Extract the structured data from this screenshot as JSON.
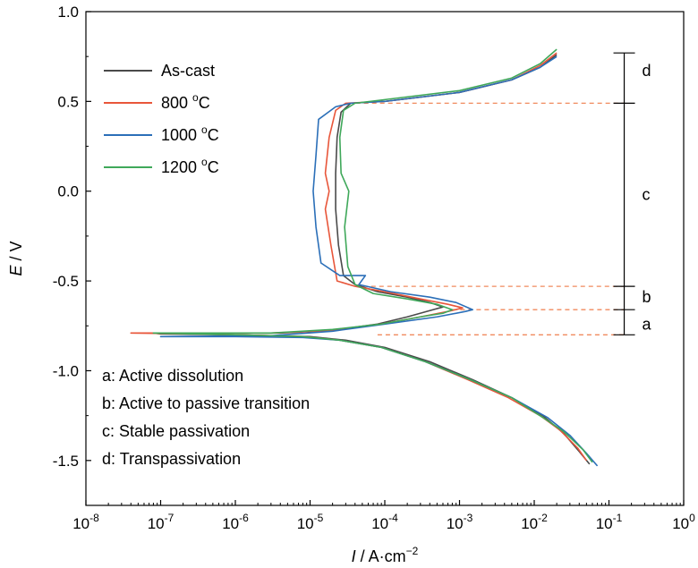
{
  "chart_data": {
    "type": "line",
    "x_scale": "log",
    "xlim": [
      1e-08,
      1
    ],
    "ylim": [
      -1.75,
      1.0
    ],
    "xlabel": {
      "italic": "I",
      "rest": " / A·cm",
      "sup": "−2"
    },
    "ylabel": {
      "italic": "E",
      "rest": " / V"
    },
    "x_ticks": [
      {
        "value": 1e-08,
        "base": "10",
        "exp": "-8"
      },
      {
        "value": 1e-07,
        "base": "10",
        "exp": "-7"
      },
      {
        "value": 1e-06,
        "base": "10",
        "exp": "-6"
      },
      {
        "value": 1e-05,
        "base": "10",
        "exp": "-5"
      },
      {
        "value": 0.0001,
        "base": "10",
        "exp": "-4"
      },
      {
        "value": 0.001,
        "base": "10",
        "exp": "-3"
      },
      {
        "value": 0.01,
        "base": "10",
        "exp": "-2"
      },
      {
        "value": 0.1,
        "base": "10",
        "exp": "-1"
      },
      {
        "value": 1,
        "base": "10",
        "exp": "0"
      }
    ],
    "y_ticks": [
      {
        "value": 1.0,
        "label": "1.0"
      },
      {
        "value": 0.5,
        "label": "0.5"
      },
      {
        "value": 0.0,
        "label": "0.0"
      },
      {
        "value": -0.5,
        "label": "-0.5"
      },
      {
        "value": -1.0,
        "label": "-1.0"
      },
      {
        "value": -1.5,
        "label": "-1.5"
      }
    ],
    "series": [
      {
        "name": "As-cast",
        "color": "#4a4a4a",
        "points": [
          [
            0.055,
            -1.52
          ],
          [
            0.04,
            -1.45
          ],
          [
            0.025,
            -1.35
          ],
          [
            0.013,
            -1.25
          ],
          [
            0.005,
            -1.15
          ],
          [
            0.0015,
            -1.05
          ],
          [
            0.0004,
            -0.95
          ],
          [
            0.0001,
            -0.87
          ],
          [
            3e-05,
            -0.83
          ],
          [
            1e-05,
            -0.81
          ],
          [
            1e-06,
            -0.8
          ],
          [
            1e-07,
            -0.795
          ],
          [
            8e-08,
            -0.79
          ],
          [
            4e-06,
            -0.79
          ],
          [
            2e-05,
            -0.775
          ],
          [
            8e-05,
            -0.74
          ],
          [
            0.0002,
            -0.7
          ],
          [
            0.0004,
            -0.665
          ],
          [
            0.0006,
            -0.645
          ],
          [
            0.0004,
            -0.62
          ],
          [
            0.0002,
            -0.59
          ],
          [
            8e-05,
            -0.56
          ],
          [
            4e-05,
            -0.52
          ],
          [
            2.8e-05,
            -0.47
          ],
          [
            2.4e-05,
            -0.3
          ],
          [
            2.2e-05,
            -0.1
          ],
          [
            2.2e-05,
            0.1
          ],
          [
            2.3e-05,
            0.3
          ],
          [
            2.6e-05,
            0.44
          ],
          [
            3.5e-05,
            0.49
          ],
          [
            0.0001,
            0.5
          ],
          [
            0.001,
            0.55
          ],
          [
            0.005,
            0.62
          ],
          [
            0.012,
            0.69
          ],
          [
            0.02,
            0.76
          ]
        ]
      },
      {
        "name": "800 °C",
        "color": "#e8563a",
        "points": [
          [
            0.05,
            -1.5
          ],
          [
            0.038,
            -1.43
          ],
          [
            0.022,
            -1.33
          ],
          [
            0.012,
            -1.25
          ],
          [
            0.0045,
            -1.15
          ],
          [
            0.0013,
            -1.05
          ],
          [
            0.00035,
            -0.95
          ],
          [
            9e-05,
            -0.87
          ],
          [
            2.5e-05,
            -0.83
          ],
          [
            8e-06,
            -0.81
          ],
          [
            1e-06,
            -0.8
          ],
          [
            3e-07,
            -0.795
          ],
          [
            4e-08,
            -0.79
          ],
          [
            3e-06,
            -0.79
          ],
          [
            2e-05,
            -0.775
          ],
          [
            9e-05,
            -0.74
          ],
          [
            0.0003,
            -0.7
          ],
          [
            0.0007,
            -0.67
          ],
          [
            0.0011,
            -0.65
          ],
          [
            0.0007,
            -0.63
          ],
          [
            0.0003,
            -0.6
          ],
          [
            0.0001,
            -0.56
          ],
          [
            4e-05,
            -0.53
          ],
          [
            2.3e-05,
            -0.5
          ],
          [
            1.9e-05,
            -0.3
          ],
          [
            1.6e-05,
            -0.1
          ],
          [
            1.8e-05,
            0.0
          ],
          [
            1.6e-05,
            0.1
          ],
          [
            1.8e-05,
            0.3
          ],
          [
            2.2e-05,
            0.45
          ],
          [
            3e-05,
            0.49
          ],
          [
            0.0001,
            0.5
          ],
          [
            0.001,
            0.55
          ],
          [
            0.005,
            0.62
          ],
          [
            0.012,
            0.7
          ],
          [
            0.02,
            0.77
          ]
        ]
      },
      {
        "name": "1000 °C",
        "color": "#2b6fb8",
        "points": [
          [
            0.07,
            -1.53
          ],
          [
            0.05,
            -1.46
          ],
          [
            0.03,
            -1.36
          ],
          [
            0.015,
            -1.26
          ],
          [
            0.005,
            -1.15
          ],
          [
            0.0014,
            -1.05
          ],
          [
            0.00035,
            -0.95
          ],
          [
            9e-05,
            -0.87
          ],
          [
            2.5e-05,
            -0.83
          ],
          [
            8e-06,
            -0.815
          ],
          [
            1e-06,
            -0.81
          ],
          [
            1e-07,
            -0.81
          ],
          [
            3e-06,
            -0.805
          ],
          [
            2e-05,
            -0.78
          ],
          [
            0.0001,
            -0.74
          ],
          [
            0.0005,
            -0.7
          ],
          [
            0.0012,
            -0.67
          ],
          [
            0.0015,
            -0.66
          ],
          [
            0.0009,
            -0.62
          ],
          [
            0.0004,
            -0.59
          ],
          [
            0.00012,
            -0.56
          ],
          [
            4.5e-05,
            -0.52
          ],
          [
            5.5e-05,
            -0.47
          ],
          [
            2.5e-05,
            -0.47
          ],
          [
            1.4e-05,
            -0.4
          ],
          [
            1.2e-05,
            -0.2
          ],
          [
            1.1e-05,
            0.0
          ],
          [
            1.2e-05,
            0.2
          ],
          [
            1.3e-05,
            0.4
          ],
          [
            2.2e-05,
            0.47
          ],
          [
            3.5e-05,
            0.49
          ],
          [
            0.0001,
            0.5
          ],
          [
            0.001,
            0.55
          ],
          [
            0.005,
            0.62
          ],
          [
            0.012,
            0.69
          ],
          [
            0.02,
            0.75
          ]
        ]
      },
      {
        "name": "1200 °C",
        "color": "#3fa85a",
        "points": [
          [
            0.06,
            -1.51
          ],
          [
            0.045,
            -1.44
          ],
          [
            0.025,
            -1.34
          ],
          [
            0.013,
            -1.26
          ],
          [
            0.005,
            -1.15
          ],
          [
            0.0014,
            -1.05
          ],
          [
            0.00035,
            -0.95
          ],
          [
            9e-05,
            -0.87
          ],
          [
            2.5e-05,
            -0.83
          ],
          [
            8e-06,
            -0.81
          ],
          [
            1e-06,
            -0.8
          ],
          [
            8e-08,
            -0.79
          ],
          [
            3e-06,
            -0.79
          ],
          [
            2e-05,
            -0.77
          ],
          [
            9e-05,
            -0.74
          ],
          [
            0.0003,
            -0.7
          ],
          [
            0.0006,
            -0.68
          ],
          [
            0.0008,
            -0.66
          ],
          [
            0.0005,
            -0.63
          ],
          [
            0.0002,
            -0.6
          ],
          [
            7e-05,
            -0.57
          ],
          [
            4e-05,
            -0.52
          ],
          [
            3.2e-05,
            -0.42
          ],
          [
            2.9e-05,
            -0.2
          ],
          [
            3.3e-05,
            0.0
          ],
          [
            2.6e-05,
            0.1
          ],
          [
            2.5e-05,
            0.3
          ],
          [
            2.8e-05,
            0.45
          ],
          [
            4e-05,
            0.49
          ],
          [
            0.0001,
            0.51
          ],
          [
            0.001,
            0.56
          ],
          [
            0.005,
            0.63
          ],
          [
            0.012,
            0.71
          ],
          [
            0.02,
            0.79
          ]
        ]
      }
    ],
    "legend": {
      "placement": "top-left",
      "entries": [
        {
          "text": "As-cast",
          "color": "#4a4a4a",
          "sup": ""
        },
        {
          "text": "800 ",
          "sup": "o",
          "after": "C",
          "color": "#e8563a"
        },
        {
          "text": "1000 ",
          "sup": "o",
          "after": "C",
          "color": "#2b6fb8"
        },
        {
          "text": "1200 ",
          "sup": "o",
          "after": "C",
          "color": "#3fa85a"
        }
      ]
    },
    "reference_lines": [
      {
        "y": 0.49,
        "x_start": 3.2e-05
      },
      {
        "y": -0.53,
        "x_start": 4e-05
      },
      {
        "y": -0.66,
        "x_start": 0.0008
      },
      {
        "y": -0.8,
        "x_start": 8e-05
      }
    ],
    "region_bracket": {
      "x_value": 0.16,
      "ticks": [
        0.77,
        0.49,
        -0.53,
        -0.66,
        -0.8
      ],
      "labels": [
        {
          "text": "d",
          "y": 0.67
        },
        {
          "text": "c",
          "y": -0.02
        },
        {
          "text": "b",
          "y": -0.59
        },
        {
          "text": "a",
          "y": -0.74
        }
      ]
    },
    "annotations": [
      "a: Active dissolution",
      "b: Active to passive transition",
      "c: Stable passivation",
      "d: Transpassivation"
    ],
    "reference_color": "#f08a5d"
  }
}
